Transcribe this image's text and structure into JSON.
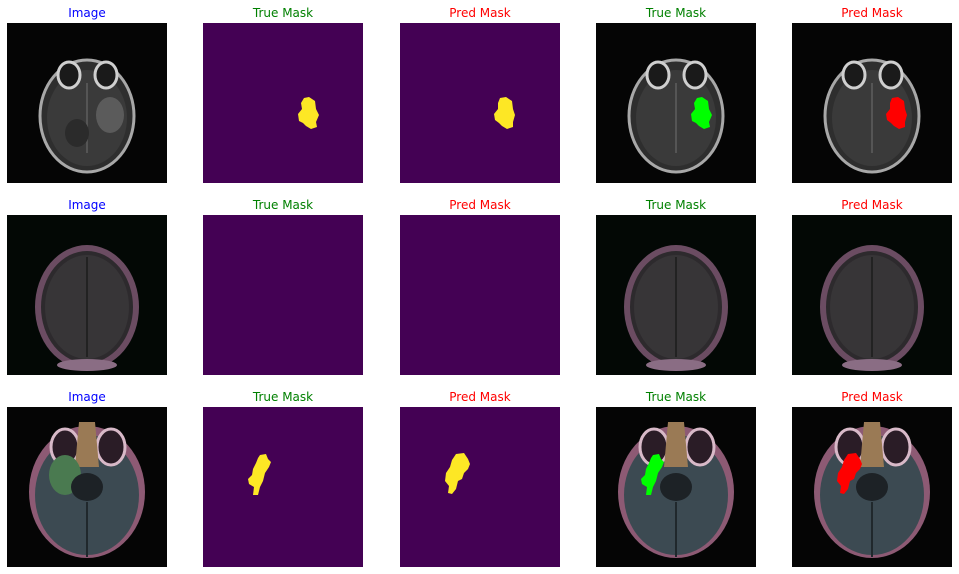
{
  "colors": {
    "image_title": "#0000ff",
    "true_mask_title": "#008000",
    "pred_mask_title": "#ff0000",
    "mask_background": "#440154",
    "mask_foreground": "#fde725",
    "true_overlay": "#00ff00",
    "pred_overlay": "#ff0000"
  },
  "rows": [
    {
      "titles": [
        "Image",
        "True Mask",
        "Pred Mask",
        "True Mask",
        "Pred Mask"
      ],
      "scan": "grayscale-axial",
      "has_lesion": true
    },
    {
      "titles": [
        "Image",
        "True Mask",
        "Pred Mask",
        "True Mask",
        "Pred Mask"
      ],
      "scan": "dark-axial",
      "has_lesion": false
    },
    {
      "titles": [
        "Image",
        "True Mask",
        "Pred Mask",
        "True Mask",
        "Pred Mask"
      ],
      "scan": "color-axial",
      "has_lesion": true
    }
  ]
}
